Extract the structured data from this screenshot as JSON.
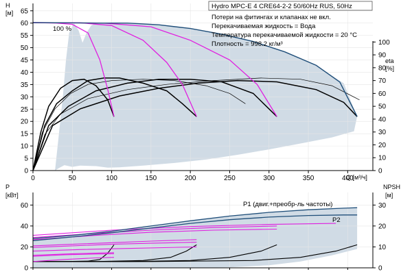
{
  "chart_data": [
    {
      "type": "line",
      "panel": "head-and-efficiency",
      "title": "Hydro MPC-E 4 CRE64-2-2 50/60Hz RUS, 50Hz",
      "notes": [
        "Потери на фитингах и клапанах не вкл.",
        "Перекачиваемая жидкость = Вода",
        "Температура перекачиваемой жидкости = 20 °C",
        "Плотность = 998.2 кг/м³"
      ],
      "xlabel": "Q [м³/ч]",
      "x_ticks": [
        0,
        50,
        100,
        150,
        200,
        250,
        300,
        350,
        400
      ],
      "xlim": [
        0,
        432
      ],
      "ylabel_left": [
        "H",
        "[м]"
      ],
      "y_ticks_left": [
        0,
        5,
        10,
        15,
        20,
        25,
        30,
        35,
        40,
        45,
        50,
        55,
        60,
        65
      ],
      "ylim_left": [
        0,
        68
      ],
      "ylabel_right": [
        "eta",
        "[%]"
      ],
      "y_ticks_right": [
        0,
        10,
        20,
        30,
        40,
        50,
        60,
        70,
        80,
        90,
        100
      ],
      "ylim_right": [
        0,
        130
      ],
      "speed_label": "100 %",
      "colors": {
        "area": "#d0dbe5",
        "speed_curves": "#e020e0",
        "max_curve": "#1f4e79",
        "eta": "#000000"
      },
      "area_outline": [
        [
          28,
          0
        ],
        [
          32,
          12
        ],
        [
          38,
          30
        ],
        [
          42,
          45
        ],
        [
          46,
          56
        ],
        [
          52,
          60
        ],
        [
          58,
          57
        ],
        [
          63,
          52
        ],
        [
          68,
          56
        ],
        [
          74,
          59
        ],
        [
          80,
          60
        ],
        [
          120,
          60
        ],
        [
          160,
          59.2
        ],
        [
          200,
          57.8
        ],
        [
          240,
          55.5
        ],
        [
          280,
          52.5
        ],
        [
          320,
          48.3
        ],
        [
          360,
          42.8
        ],
        [
          395,
          35.5
        ],
        [
          412,
          22
        ],
        [
          408,
          16
        ],
        [
          380,
          13.5
        ],
        [
          340,
          11
        ],
        [
          300,
          8.6
        ],
        [
          260,
          6.4
        ],
        [
          220,
          4.5
        ],
        [
          180,
          3.1
        ],
        [
          140,
          2
        ],
        [
          110,
          1.3
        ],
        [
          95,
          1.2
        ],
        [
          80,
          1.8
        ],
        [
          60,
          2
        ],
        [
          50,
          1.5
        ],
        [
          40,
          2.2
        ],
        [
          33,
          1
        ]
      ],
      "speed_curves": [
        {
          "points": [
            [
              0,
              60.2
            ],
            [
              30,
              60
            ],
            [
              50,
              59.5
            ],
            [
              70,
              56
            ],
            [
              85,
              45
            ],
            [
              95,
              33
            ],
            [
              103,
              22
            ]
          ]
        },
        {
          "points": [
            [
              0,
              60.2
            ],
            [
              60,
              60.1
            ],
            [
              100,
              59
            ],
            [
              140,
              53
            ],
            [
              170,
              44
            ],
            [
              190,
              35
            ],
            [
              208,
              22
            ]
          ]
        },
        {
          "points": [
            [
              0,
              60.2
            ],
            [
              90,
              60
            ],
            [
              150,
              58.5
            ],
            [
              200,
              53
            ],
            [
              250,
              45
            ],
            [
              285,
              35
            ],
            [
              310,
              22
            ]
          ]
        }
      ],
      "max_curve": {
        "points": [
          [
            0,
            60.2
          ],
          [
            80,
            60
          ],
          [
            120,
            60
          ],
          [
            160,
            59.3
          ],
          [
            200,
            57.8
          ],
          [
            240,
            55.5
          ],
          [
            280,
            52.5
          ],
          [
            320,
            48.3
          ],
          [
            360,
            42.8
          ],
          [
            390,
            36
          ],
          [
            412,
            22
          ]
        ]
      },
      "eta_curves": [
        {
          "points": [
            [
              0,
              0
            ],
            [
              10,
              30
            ],
            [
              20,
              50
            ],
            [
              35,
              64
            ],
            [
              50,
              70
            ],
            [
              65,
              71
            ],
            [
              80,
              66
            ],
            [
              95,
              55
            ],
            [
              103,
              42
            ]
          ]
        },
        {
          "points": [
            [
              0,
              0
            ],
            [
              15,
              35
            ],
            [
              30,
              52
            ],
            [
              50,
              62
            ],
            [
              70,
              70
            ],
            [
              90,
              72
            ],
            [
              110,
              72
            ],
            [
              140,
              68
            ],
            [
              170,
              62
            ],
            [
              190,
              52
            ],
            [
              208,
              42
            ]
          ]
        },
        {
          "points": [
            [
              0,
              0
            ],
            [
              20,
              35
            ],
            [
              45,
              50
            ],
            [
              80,
              62
            ],
            [
              120,
              68
            ],
            [
              160,
              71
            ],
            [
              200,
              71
            ],
            [
              240,
              69
            ],
            [
              280,
              60
            ],
            [
              310,
              42
            ]
          ]
        },
        {
          "points": [
            [
              0,
              0
            ],
            [
              25,
              35
            ],
            [
              60,
              48
            ],
            [
              110,
              58
            ],
            [
              160,
              64
            ],
            [
              210,
              68
            ],
            [
              260,
              70
            ],
            [
              310,
              69
            ],
            [
              360,
              63
            ],
            [
              395,
              53
            ],
            [
              412,
              42
            ]
          ]
        },
        {
          "points": [
            [
              0,
              0
            ],
            [
              12,
              30
            ],
            [
              28,
              48
            ],
            [
              48,
              60
            ],
            [
              70,
              67
            ],
            [
              100,
              70
            ],
            [
              140,
              71
            ],
            [
              180,
              70
            ],
            [
              220,
              66
            ],
            [
              250,
              60
            ],
            [
              270,
              52
            ]
          ]
        },
        {
          "points": [
            [
              0,
              0
            ],
            [
              15,
              28
            ],
            [
              35,
              44
            ],
            [
              70,
              56
            ],
            [
              120,
              63
            ],
            [
              170,
              67
            ],
            [
              230,
              70
            ],
            [
              290,
              72
            ],
            [
              340,
              71
            ],
            [
              380,
              66
            ],
            [
              415,
              55
            ]
          ]
        }
      ]
    },
    {
      "type": "line",
      "panel": "power-and-npsh",
      "xlim": [
        0,
        432
      ],
      "ylabel_left": [
        "P",
        "[кВт]"
      ],
      "y_ticks_left": [
        0,
        20,
        40,
        60
      ],
      "ylim_left": [
        0,
        72
      ],
      "ylabel_right": [
        "NPSH",
        "[м]"
      ],
      "y_ticks_right": [
        0,
        10,
        20,
        30
      ],
      "ylim_right": [
        0,
        36
      ],
      "colors": {
        "area": "#d0dbe5",
        "speed_curves": "#e020e0",
        "p1": "#1f4e79",
        "p2": "#1f4e79",
        "npsh": "#000000"
      },
      "area_outline": [
        [
          0,
          5.5
        ],
        [
          0,
          28
        ],
        [
          50,
          31
        ],
        [
          100,
          35
        ],
        [
          150,
          40
        ],
        [
          200,
          45
        ],
        [
          250,
          49.5
        ],
        [
          300,
          53
        ],
        [
          350,
          55.5
        ],
        [
          395,
          57
        ],
        [
          412,
          57.5
        ],
        [
          412,
          18
        ],
        [
          380,
          12
        ],
        [
          340,
          6
        ],
        [
          300,
          2.5
        ],
        [
          250,
          0.5
        ],
        [
          200,
          0
        ],
        [
          0,
          0
        ]
      ],
      "series": [
        {
          "name": "P1 (двиг.+преобр-ль частоты)",
          "points": [
            [
              0,
              28
            ],
            [
              50,
              31
            ],
            [
              100,
              35
            ],
            [
              150,
              40
            ],
            [
              200,
              45
            ],
            [
              250,
              49.5
            ],
            [
              300,
              53
            ],
            [
              350,
              55.5
            ],
            [
              395,
              57
            ],
            [
              412,
              57.5
            ]
          ]
        },
        {
          "name": "P2",
          "points": [
            [
              0,
              26
            ],
            [
              50,
              29.5
            ],
            [
              100,
              33.5
            ],
            [
              150,
              38
            ],
            [
              200,
              42.5
            ],
            [
              250,
              46
            ],
            [
              300,
              48.5
            ],
            [
              350,
              50
            ],
            [
              395,
              50.5
            ],
            [
              412,
              50.5
            ]
          ]
        }
      ],
      "speed_curves": [
        {
          "points": [
            [
              0,
              12
            ],
            [
              50,
              13.5
            ],
            [
              80,
              14
            ],
            [
              103,
              14.5
            ]
          ]
        },
        {
          "points": [
            [
              0,
              11
            ],
            [
              40,
              12.5
            ],
            [
              80,
              13.2
            ],
            [
              103,
              13.5
            ]
          ]
        },
        {
          "points": [
            [
              0,
              21
            ],
            [
              50,
              22.5
            ],
            [
              100,
              24
            ],
            [
              150,
              25.5
            ],
            [
              208,
              27
            ]
          ]
        },
        {
          "points": [
            [
              0,
              19.5
            ],
            [
              50,
              21
            ],
            [
              100,
              22.5
            ],
            [
              150,
              23.5
            ],
            [
              208,
              24.5
            ]
          ]
        },
        {
          "points": [
            [
              0,
              29
            ],
            [
              80,
              33
            ],
            [
              150,
              36
            ],
            [
              230,
              38.5
            ],
            [
              310,
              40
            ]
          ]
        },
        {
          "points": [
            [
              0,
              27
            ],
            [
              80,
              31
            ],
            [
              150,
              34
            ],
            [
              230,
              36
            ],
            [
              310,
              37
            ]
          ]
        },
        {
          "points": [
            [
              0,
              31
            ],
            [
              100,
              36
            ],
            [
              200,
              39.5
            ],
            [
              300,
              41.5
            ],
            [
              385,
              42.5
            ]
          ]
        },
        {
          "points": [
            [
              0,
              6
            ],
            [
              40,
              8
            ],
            [
              80,
              9.5
            ],
            [
              103,
              10
            ]
          ]
        },
        {
          "points": [
            [
              0,
              16
            ],
            [
              60,
              17.5
            ],
            [
              120,
              18.5
            ],
            [
              208,
              20
            ]
          ]
        }
      ],
      "npsh_curves": [
        {
          "points": [
            [
              0,
              3
            ],
            [
              40,
              3
            ],
            [
              70,
              3.2
            ],
            [
              85,
              4
            ],
            [
              95,
              7
            ],
            [
              103,
              11
            ]
          ]
        },
        {
          "points": [
            [
              0,
              3
            ],
            [
              80,
              3
            ],
            [
              140,
              3.5
            ],
            [
              175,
              5
            ],
            [
              195,
              8
            ],
            [
              208,
              11
            ]
          ]
        },
        {
          "points": [
            [
              0,
              3
            ],
            [
              120,
              3
            ],
            [
              200,
              3.5
            ],
            [
              250,
              5
            ],
            [
              290,
              8
            ],
            [
              310,
              11
            ]
          ]
        },
        {
          "points": [
            [
              0,
              3
            ],
            [
              150,
              3
            ],
            [
              280,
              3.5
            ],
            [
              340,
              5
            ],
            [
              385,
              8
            ],
            [
              412,
              11
            ]
          ]
        }
      ]
    }
  ]
}
